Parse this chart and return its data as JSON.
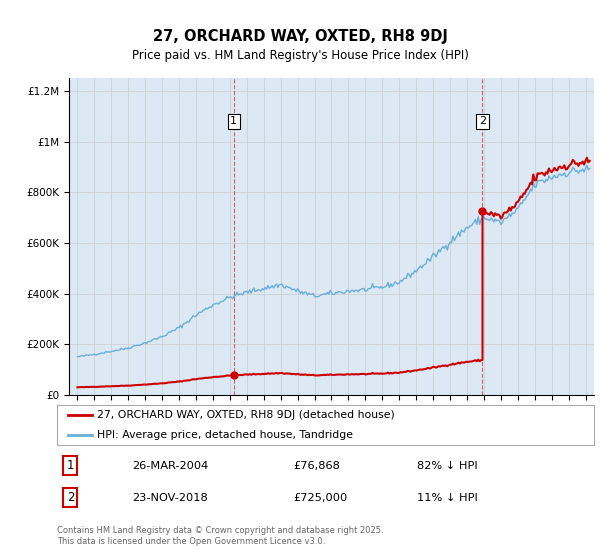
{
  "title": "27, ORCHARD WAY, OXTED, RH8 9DJ",
  "subtitle": "Price paid vs. HM Land Registry's House Price Index (HPI)",
  "legend_line1": "27, ORCHARD WAY, OXTED, RH8 9DJ (detached house)",
  "legend_line2": "HPI: Average price, detached house, Tandridge",
  "annotation1_date": "26-MAR-2004",
  "annotation1_price": "£76,868",
  "annotation1_hpi": "82% ↓ HPI",
  "annotation2_date": "23-NOV-2018",
  "annotation2_price": "£725,000",
  "annotation2_hpi": "11% ↓ HPI",
  "footnote": "Contains HM Land Registry data © Crown copyright and database right 2025.\nThis data is licensed under the Open Government Licence v3.0.",
  "transaction1_year": 2004.23,
  "transaction1_price": 76868,
  "transaction2_year": 2018.9,
  "transaction2_price": 725000,
  "hpi_color": "#6aaed6",
  "price_color": "#cc0000",
  "bg_color": "#dce9f5",
  "plot_bg": "#ffffff",
  "grid_color": "#cccccc",
  "ylim": [
    0,
    1250000
  ],
  "xlim_start": 1994.5,
  "xlim_end": 2025.5,
  "hpi_years_annual": [
    1995,
    1996,
    1997,
    1998,
    1999,
    2000,
    2001,
    2002,
    2003,
    2004,
    2005,
    2006,
    2007,
    2008,
    2009,
    2010,
    2011,
    2012,
    2013,
    2014,
    2015,
    2016,
    2017,
    2018,
    2019,
    2020,
    2021,
    2022,
    2023,
    2024,
    2025
  ],
  "hpi_values_annual": [
    150000,
    160000,
    172000,
    185000,
    205000,
    230000,
    265000,
    315000,
    355000,
    385000,
    405000,
    420000,
    435000,
    410000,
    390000,
    400000,
    410000,
    415000,
    425000,
    445000,
    490000,
    545000,
    605000,
    660000,
    700000,
    680000,
    730000,
    830000,
    860000,
    880000,
    890000
  ]
}
